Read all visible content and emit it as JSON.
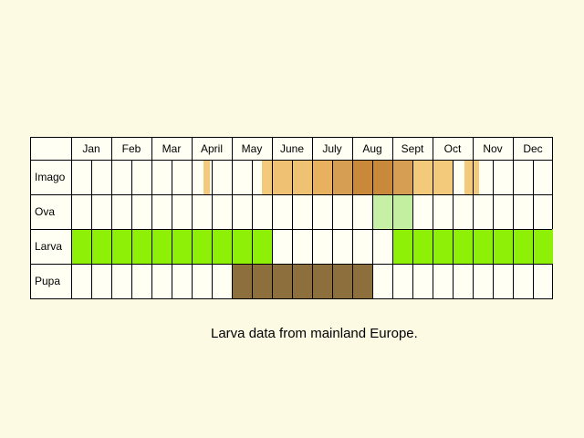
{
  "months": [
    "Jan",
    "Feb",
    "Mar",
    "April",
    "May",
    "June",
    "July",
    "Aug",
    "Sept",
    "Oct",
    "Nov",
    "Dec"
  ],
  "rows": [
    {
      "label": "Imago",
      "segments": [
        {
          "start": 6.6,
          "end": 6.9,
          "color": "#f3ca7c"
        },
        {
          "start": 9.5,
          "end": 10.0,
          "color": "#f3ca7c"
        },
        {
          "start": 10.0,
          "end": 12.0,
          "color": "#efc173"
        },
        {
          "start": 12.0,
          "end": 13.0,
          "color": "#e8b160"
        },
        {
          "start": 13.0,
          "end": 14.0,
          "color": "#d69e52"
        },
        {
          "start": 14.0,
          "end": 16.0,
          "color": "#c8893a"
        },
        {
          "start": 16.0,
          "end": 17.0,
          "color": "#d69e52"
        },
        {
          "start": 17.0,
          "end": 19.0,
          "color": "#f3ca7c"
        },
        {
          "start": 19.6,
          "end": 20.3,
          "color": "#f3ca7c"
        }
      ]
    },
    {
      "label": "Ova",
      "segments": [
        {
          "start": 15.0,
          "end": 16.0,
          "color": "#c6f0a4"
        },
        {
          "start": 16.0,
          "end": 17.0,
          "color": "#c3f0a0"
        }
      ]
    },
    {
      "label": "Larva",
      "segments": [
        {
          "start": 0.0,
          "end": 10.0,
          "color": "#8ef006"
        },
        {
          "start": 16.0,
          "end": 24.0,
          "color": "#8ef006"
        }
      ]
    },
    {
      "label": "Pupa",
      "segments": [
        {
          "start": 8.0,
          "end": 15.0,
          "color": "#8c6f3c"
        }
      ]
    }
  ],
  "note": "Larva data from mainland Europe."
}
